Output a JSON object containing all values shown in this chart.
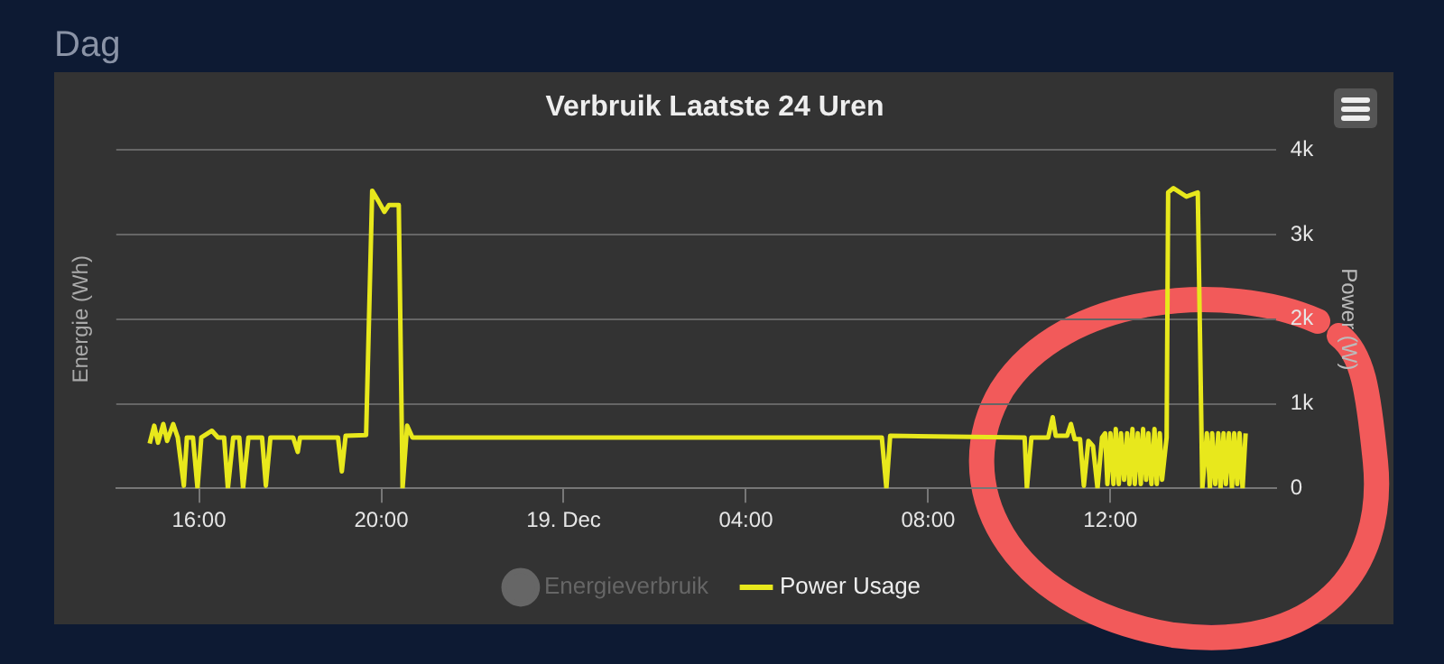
{
  "chart_data": {
    "type": "line",
    "title": "Verbruik Laatste 24 Uren",
    "subtitle": "Dag",
    "ylabel": "Energie (Wh)",
    "y2label": "Power (W)",
    "xlim": [
      "--12-18T14:11",
      "--12-19T15:38"
    ],
    "xticks": [
      {
        "value": "--12-18T16:00",
        "label": "16:00"
      },
      {
        "value": "--12-18T20:00",
        "label": "20:00"
      },
      {
        "value": "--12-19T00:00",
        "label": "19. Dec"
      },
      {
        "value": "--12-19T04:00",
        "label": "04:00"
      },
      {
        "value": "--12-19T08:00",
        "label": "08:00"
      },
      {
        "value": "--12-19T12:00",
        "label": "12:00"
      }
    ],
    "y2lim": [
      0,
      4000
    ],
    "y2ticks": [
      {
        "value": 0,
        "label": "0"
      },
      {
        "value": 1000,
        "label": "1k"
      },
      {
        "value": 2000,
        "label": "2k"
      },
      {
        "value": 3000,
        "label": "3k"
      },
      {
        "value": 4000,
        "label": "4k"
      }
    ],
    "grid": "y",
    "legend": "bottom",
    "marker": "none",
    "line_style": "solid",
    "series": [
      {
        "name": "Energieverbruik",
        "color": "#666666",
        "axis": "y",
        "values": [
          null
        ]
      },
      {
        "name": "Power Usage",
        "color": "#e8e81c",
        "axis": "y2",
        "x": [
          "--12-18T14:55",
          "--12-18T15:01",
          "--12-18T15:06",
          "--12-18T15:13",
          "--12-18T15:18",
          "--12-18T15:26",
          "--12-18T15:32",
          "--12-18T15:40",
          "--12-18T15:44",
          "--12-18T15:52",
          "--12-18T15:58",
          "--12-18T16:03",
          "--12-18T16:17",
          "--12-18T16:25",
          "--12-18T16:33",
          "--12-18T16:38",
          "--12-18T16:45",
          "--12-18T16:53",
          "--12-18T16:58",
          "--12-18T17:05",
          "--12-18T17:23",
          "--12-18T17:28",
          "--12-18T17:34",
          "--12-18T18:04",
          "--12-18T18:10",
          "--12-18T18:13",
          "--12-18T19:03",
          "--12-18T19:08",
          "--12-18T19:13",
          "--12-18T19:40",
          "--12-18T19:48",
          "--12-18T19:56",
          "--12-18T20:04",
          "--12-18T20:10",
          "--12-18T20:23",
          "--12-18T20:28",
          "--12-18T20:34",
          "--12-18T20:41",
          "--12-19T06:59",
          "--12-19T07:05",
          "--12-19T07:10",
          "--12-19T10:07",
          "--12-19T10:10",
          "--12-19T10:16",
          "--12-19T10:38",
          "--12-19T10:44",
          "--12-19T10:48",
          "--12-19T11:03",
          "--12-19T11:08",
          "--12-19T11:13",
          "--12-19T11:20",
          "--12-19T11:25",
          "--12-19T11:31",
          "--12-19T11:37",
          "--12-19T11:43",
          "--12-19T11:49",
          "--12-19T11:53",
          "--12-19T11:56",
          "--12-19T12:00",
          "--12-19T12:04",
          "--12-19T12:07",
          "--12-19T12:11",
          "--12-19T12:14",
          "--12-19T12:18",
          "--12-19T12:22",
          "--12-19T12:25",
          "--12-19T12:29",
          "--12-19T12:32",
          "--12-19T12:36",
          "--12-19T12:40",
          "--12-19T12:43",
          "--12-19T12:47",
          "--12-19T12:50",
          "--12-19T12:54",
          "--12-19T12:58",
          "--12-19T13:01",
          "--12-19T13:05",
          "--12-19T13:08",
          "--12-19T13:14",
          "--12-19T13:16",
          "--12-19T13:23",
          "--12-19T13:40",
          "--12-19T13:55",
          "--12-19T14:01",
          "--12-19T14:07",
          "--12-19T14:11",
          "--12-19T14:14",
          "--12-19T14:18",
          "--12-19T14:22",
          "--12-19T14:25",
          "--12-19T14:29",
          "--12-19T14:32",
          "--12-19T14:36",
          "--12-19T14:40",
          "--12-19T14:43",
          "--12-19T14:47",
          "--12-19T14:50",
          "--12-19T14:54",
          "--12-19T14:58"
        ],
        "values": [
          530,
          740,
          540,
          760,
          560,
          760,
          600,
          30,
          600,
          600,
          0,
          600,
          680,
          600,
          600,
          0,
          600,
          600,
          0,
          600,
          600,
          30,
          600,
          600,
          430,
          600,
          600,
          200,
          620,
          630,
          3520,
          3400,
          3270,
          3350,
          3350,
          0,
          740,
          600,
          600,
          0,
          620,
          600,
          0,
          600,
          600,
          840,
          620,
          620,
          760,
          580,
          580,
          30,
          560,
          500,
          0,
          600,
          650,
          50,
          650,
          50,
          700,
          50,
          650,
          100,
          650,
          50,
          700,
          50,
          650,
          50,
          700,
          100,
          650,
          50,
          700,
          50,
          650,
          100,
          600,
          3500,
          3550,
          3450,
          3500,
          0,
          650,
          0,
          650,
          50,
          650,
          0,
          650,
          50,
          650,
          0,
          650,
          50,
          650,
          0,
          650
        ]
      }
    ]
  }
}
